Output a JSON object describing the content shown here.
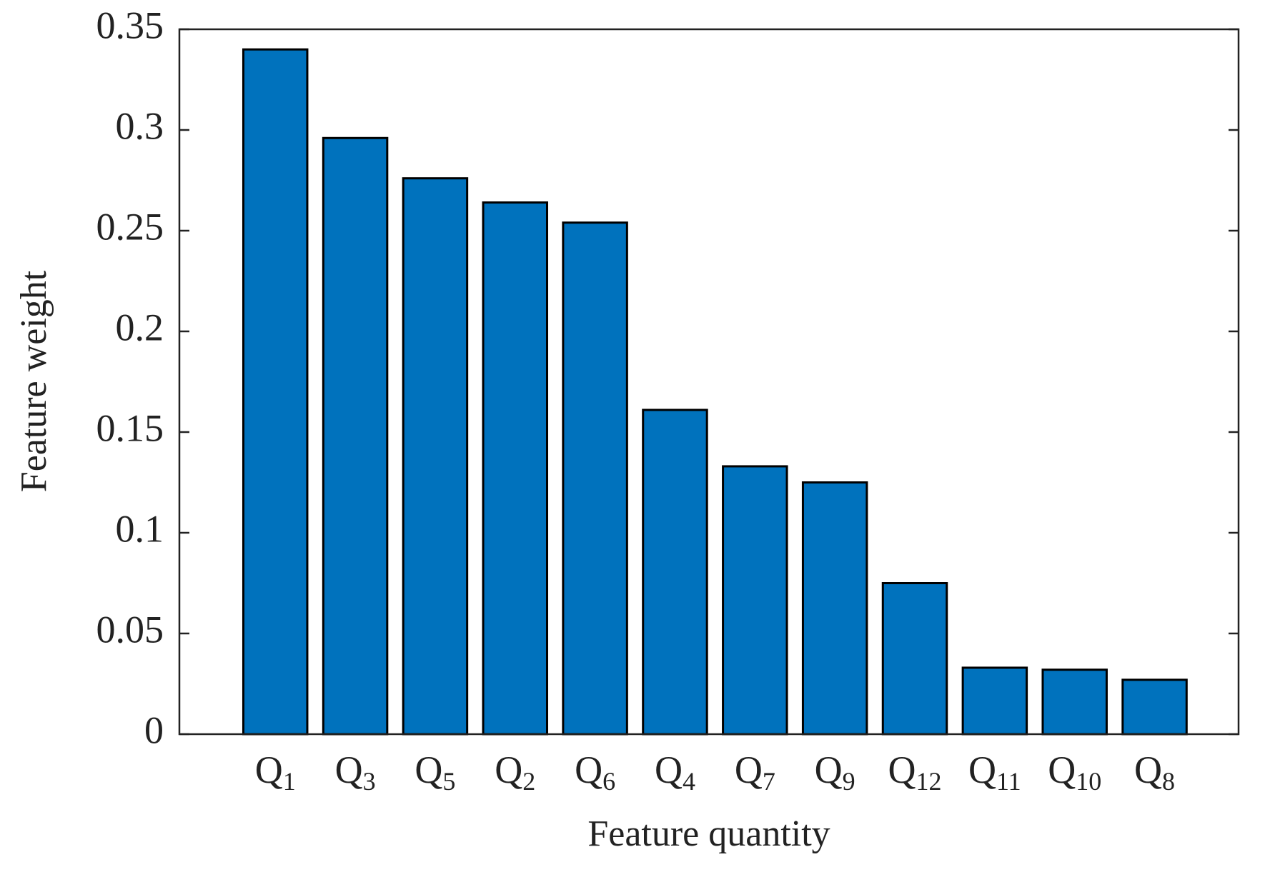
{
  "chart_data": {
    "type": "bar",
    "xlabel": "Feature quantity",
    "ylabel": "Feature weight",
    "categories": [
      "Q1",
      "Q3",
      "Q5",
      "Q2",
      "Q6",
      "Q4",
      "Q7",
      "Q9",
      "Q12",
      "Q11",
      "Q10",
      "Q8"
    ],
    "values": [
      0.34,
      0.296,
      0.276,
      0.264,
      0.254,
      0.161,
      0.133,
      0.125,
      0.075,
      0.033,
      0.032,
      0.027
    ],
    "color": "#0072bd",
    "ylim": [
      0,
      0.35
    ],
    "yticks": [
      0,
      0.05,
      0.1,
      0.15,
      0.2,
      0.25,
      0.3,
      0.35
    ],
    "grid": false
  }
}
